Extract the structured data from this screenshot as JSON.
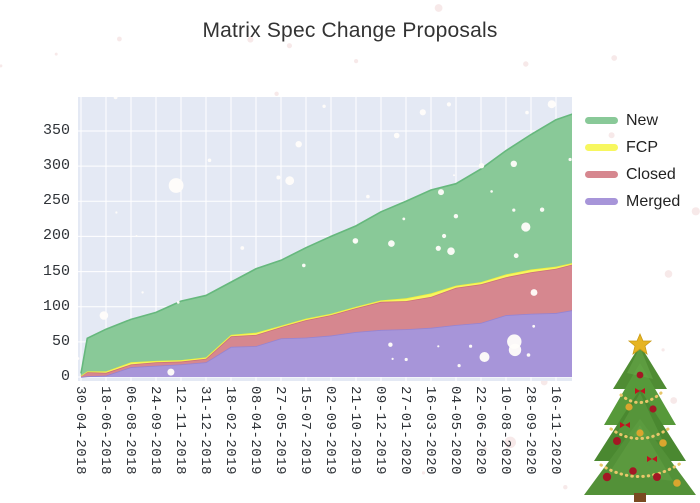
{
  "chart_data": {
    "type": "area",
    "stacked": true,
    "title": "Matrix Spec Change Proposals",
    "x_tick_labels": [
      "30-04-2018",
      "18-06-2018",
      "06-08-2018",
      "24-09-2018",
      "12-11-2018",
      "31-12-2018",
      "18-02-2019",
      "08-04-2019",
      "27-05-2019",
      "15-07-2019",
      "02-09-2019",
      "21-10-2019",
      "09-12-2019",
      "27-01-2020",
      "16-03-2020",
      "04-05-2020",
      "22-06-2020",
      "10-08-2020",
      "28-09-2020",
      "16-11-2020"
    ],
    "x_positions": [
      0,
      0.25,
      1,
      2,
      3,
      4,
      5,
      6,
      7,
      8,
      9,
      10,
      11,
      12,
      13,
      14,
      15,
      16,
      17,
      18,
      19,
      19.65
    ],
    "series": [
      {
        "name": "New",
        "color": "#89c998",
        "edge": "#66b87d",
        "values": [
          3,
          47,
          60,
          61,
          69,
          84,
          88,
          75,
          91,
          93,
          101,
          110,
          115,
          126,
          138,
          147,
          145,
          161,
          176,
          192,
          209,
          212
        ]
      },
      {
        "name": "FCP",
        "color": "#f7f75f",
        "edge": "#f0ef3c",
        "values": [
          0,
          1,
          2,
          3,
          2,
          2,
          2,
          2,
          3,
          2,
          2,
          2,
          2,
          2,
          4,
          5,
          3,
          3,
          4,
          4,
          3,
          2
        ]
      },
      {
        "name": "Closed",
        "color": "#d6878f",
        "edge": "#cc6f7a",
        "values": [
          2,
          6,
          4,
          4,
          5,
          4,
          5,
          15,
          16,
          16,
          25,
          29,
          34,
          40,
          40,
          44,
          53,
          55,
          54,
          59,
          63,
          65
        ]
      },
      {
        "name": "Merged",
        "color": "#a795d9",
        "edge": "#9583d1",
        "values": [
          0,
          1,
          2,
          14,
          16,
          18,
          21,
          43,
          44,
          55,
          56,
          59,
          64,
          67,
          68,
          70,
          74,
          77,
          88,
          90,
          91,
          95
        ]
      }
    ],
    "stack_order_bottom_to_top": [
      "Merged",
      "Closed",
      "FCP",
      "New"
    ],
    "y_ticks": [
      0,
      50,
      100,
      150,
      200,
      250,
      300,
      350
    ],
    "y_axis_max": 398,
    "legend_position": "right",
    "legend_order": [
      "New",
      "FCP",
      "Closed",
      "Merged"
    ],
    "grid": true,
    "plot_bg": "#e4e9f4",
    "grid_color": "#ffffff",
    "decorations": {
      "snow_color": "#fffdfa",
      "page_snow_color": "#f7e9e9",
      "corner_image": "christmas-tree"
    }
  }
}
